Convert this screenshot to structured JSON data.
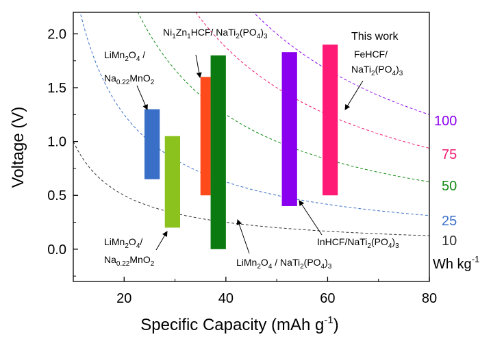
{
  "chart_data": {
    "type": "bar",
    "xlabel": "Specific Capacity (mAh g-1)",
    "xlabel_parts": {
      "main": "Specific Capacity (mAh g",
      "sup": "-1",
      "close": ")"
    },
    "ylabel": "Voltage (V)",
    "xlim": [
      10,
      80
    ],
    "ylim": [
      -0.3,
      2.2
    ],
    "xticks": [
      20,
      40,
      60,
      80
    ],
    "xtick_labels": [
      "20",
      "40",
      "60",
      "80"
    ],
    "yticks": [
      0.0,
      0.5,
      1.0,
      1.5,
      2.0
    ],
    "ytick_labels": [
      "0.0",
      "0.5",
      "1.0",
      "1.5",
      "2.0"
    ],
    "bars": [
      {
        "name": "LiMn2O4 / Na0.22MnO2 (top)",
        "x0": 24,
        "x1": 27,
        "ymin": 0.65,
        "ymax": 1.3,
        "color": "#3a6fc8"
      },
      {
        "name": "LiMn2O4/ Na0.22MnO2 (bottom)",
        "x0": 28,
        "x1": 31,
        "ymin": 0.2,
        "ymax": 1.05,
        "color": "#8cc21e"
      },
      {
        "name": "Ni1Zn1HCF/ NaTi2(PO4)3",
        "x0": 35,
        "x1": 37,
        "ymin": 0.5,
        "ymax": 1.6,
        "color": "#ff4a1c"
      },
      {
        "name": "LiMn2O4 / NaTi2(PO4)3",
        "x0": 37,
        "x1": 40,
        "ymin": 0.0,
        "ymax": 1.8,
        "color": "#0b7a10"
      },
      {
        "name": "InHCF/NaTi2(PO4)3",
        "x0": 51,
        "x1": 54,
        "ymin": 0.4,
        "ymax": 1.83,
        "color": "#8a00ee"
      },
      {
        "name": "FeHCF/ NaTi2(PO4)3",
        "x0": 59,
        "x1": 62,
        "ymin": 0.5,
        "ymax": 1.9,
        "color": "#ff1a75"
      }
    ],
    "energy_curves": [
      {
        "label": "10",
        "energy": 10,
        "color": "#333333"
      },
      {
        "label": "25",
        "energy": 25,
        "color": "#3a6fc8"
      },
      {
        "label": "50",
        "energy": 50,
        "color": "#128a14"
      },
      {
        "label": "75",
        "energy": 75,
        "color": "#ee1a73"
      },
      {
        "label": "100",
        "energy": 100,
        "color": "#8a00ee"
      }
    ],
    "energy_unit": {
      "main": "Wh kg",
      "sup": "-1"
    },
    "annotations": {
      "this_work": "This work",
      "fehcf_line1": "FeHCF/",
      "fehcf_line2": {
        "a": "NaTi",
        "b": "2",
        "c": "(PO",
        "d": "4",
        "e": ")",
        "f": "3"
      },
      "nizn": {
        "a": "Ni",
        "b": "1",
        "c": "Zn",
        "d": "1",
        "e": "HCF/ NaTi",
        "f": "2",
        "g": "(PO",
        "h": "4",
        "i": ")",
        "j": "3"
      },
      "limn_top_line1": {
        "a": "LiMn",
        "b": "2",
        "c": "O",
        "d": "4",
        "e": " /"
      },
      "limn_top_line2": {
        "a": "Na",
        "b": "0.22",
        "c": "MnO",
        "d": "2"
      },
      "limn_bot_line1": {
        "a": "LiMn",
        "b": "2",
        "c": "O",
        "d": "4",
        "e": "/"
      },
      "limn_bot_line2": {
        "a": "Na",
        "b": "0.22",
        "c": "MnO",
        "d": "2"
      },
      "limn_nati": {
        "a": "LiMn",
        "b": "2",
        "c": "O",
        "d": "4",
        "e": " / NaTi",
        "f": "2",
        "g": "(PO",
        "h": "4",
        "i": ")",
        "j": "3"
      },
      "inhcf": {
        "a": "InHCF/NaTi",
        "b": "2",
        "c": "(PO",
        "d": "4",
        "e": ")",
        "f": "3"
      }
    }
  }
}
